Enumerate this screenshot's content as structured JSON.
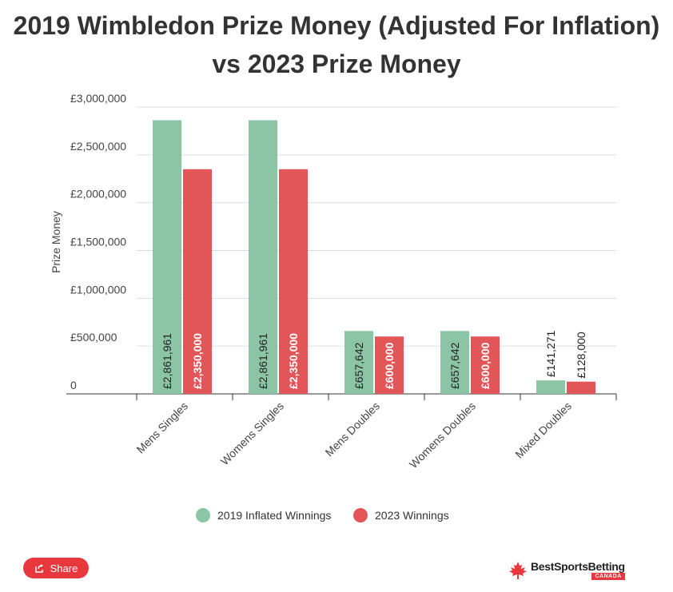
{
  "chart_data": {
    "type": "bar",
    "title": "2019 Wimbledon Prize Money (Adjusted For Inflation) vs 2023 Prize Money",
    "title_lines": [
      "2019 Wimbledon Prize Money (Adjusted For Inflation)",
      "vs 2023 Prize Money"
    ],
    "ylabel": "Prize Money",
    "xlabel": "",
    "ylim": [
      0,
      3000000
    ],
    "y_ticks": [
      0,
      500000,
      1000000,
      1500000,
      2000000,
      2500000,
      3000000
    ],
    "y_tick_labels": [
      "0",
      "£500,000",
      "£1,000,000",
      "£1,500,000",
      "£2,000,000",
      "£2,500,000",
      "£3,000,000"
    ],
    "categories": [
      "Mens Singles",
      "Womens Singles",
      "Mens Doubles",
      "Womens Doubles",
      "Mixed Doubles"
    ],
    "series": [
      {
        "name": "2019 Inflated Winnings",
        "color": "#8cc4a6",
        "values": [
          2861961,
          2861961,
          657642,
          657642,
          141271
        ],
        "labels": [
          "£2,861,961",
          "£2,861,961",
          "£657,642",
          "£657,642",
          "£141,271"
        ]
      },
      {
        "name": "2023 Winnings",
        "color": "#e25558",
        "values": [
          2350000,
          2350000,
          600000,
          600000,
          128000
        ],
        "labels": [
          "£2,350,000",
          "£2,350,000",
          "£600,000",
          "£600,000",
          "£128,000"
        ]
      }
    ],
    "grid": true,
    "legend": "bottom"
  },
  "footer": {
    "share_label": "Share",
    "share_icon": "share-icon",
    "brand_name": "BestSportsBetting",
    "brand_sub": "CANADA",
    "brand_icon": "maple-leaf-icon"
  }
}
